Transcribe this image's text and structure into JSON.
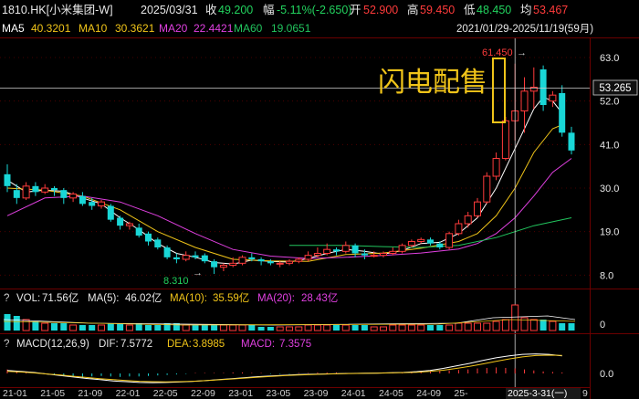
{
  "header": {
    "symbol": "1810.HK[小米集团-W]",
    "date": "2025/03/31",
    "close_label": "收",
    "close": "49.200",
    "change_label": "幅",
    "change": "-5.11%(-2.650)",
    "open_label": "开",
    "open": "52.900",
    "high_label": "高",
    "high": "59.450",
    "low_label": "低",
    "low": "48.450",
    "avg_label": "均",
    "avg": "53.467"
  },
  "ma_line": {
    "items": [
      {
        "label": "MA5",
        "value": "40.3201",
        "color": "#ffffff"
      },
      {
        "label": "MA10",
        "value": "30.3621",
        "color": "#f0c419"
      },
      {
        "label": "MA20",
        "value": "22.4421",
        "color": "#e040e0"
      },
      {
        "label": "MA60",
        "value": "19.0651",
        "color": "#22c55e"
      }
    ],
    "range": "2021/01/29-2025/11/19(59月)"
  },
  "annotation": {
    "text": "闪电配售",
    "color": "#f0c419"
  },
  "price_labels": {
    "high_mark": "61.450",
    "low_mark": "8.310",
    "current": "53.265"
  },
  "vol_line": {
    "q": "?",
    "vol_label": "VOL:",
    "vol": "71.56亿",
    "ma5_label": "MA(5):",
    "ma5": "46.02亿",
    "ma10_label": "MA(10):",
    "ma10": "35.59亿",
    "ma20_label": "MA(20):",
    "ma20": "28.43亿",
    "axis_zero": "0"
  },
  "macd_line": {
    "q": "?",
    "label": "MACD(12,26,9)",
    "dif_label": "DIF:",
    "dif": "7.5772",
    "dea_label": "DEA:",
    "dea": "3.8985",
    "macd_label": "MACD:",
    "macd": "7.3575",
    "axis_zero": "0.0"
  },
  "x_axis": {
    "ticks": [
      "21-01",
      "21-05",
      "21-09",
      "22-01",
      "22-05",
      "22-09",
      "23-01",
      "23-05",
      "23-09",
      "24-01",
      "24-05",
      "24-09",
      "25-"
    ],
    "current_label": "2025-3-31(一)",
    "last": "9"
  },
  "chart_data": {
    "type": "candlestick",
    "title": "",
    "y_ticks": [
      63.0,
      52.0,
      41.0,
      30.0,
      19.0,
      8.0
    ],
    "ylim": [
      6,
      66
    ],
    "up_color": "#ff3b3b",
    "down_color": "#19d6d6",
    "candles": [
      {
        "o": 33.5,
        "c": 30.5,
        "h": 36.0,
        "l": 29.0
      },
      {
        "o": 29.5,
        "c": 27.5,
        "h": 31.0,
        "l": 26.0
      },
      {
        "o": 27.5,
        "c": 30.5,
        "h": 31.5,
        "l": 27.0
      },
      {
        "o": 30.5,
        "c": 29.0,
        "h": 31.5,
        "l": 28.0
      },
      {
        "o": 29.0,
        "c": 30.0,
        "h": 31.0,
        "l": 28.5
      },
      {
        "o": 30.0,
        "c": 29.5,
        "h": 30.5,
        "l": 28.0
      },
      {
        "o": 29.5,
        "c": 27.5,
        "h": 30.0,
        "l": 26.0
      },
      {
        "o": 27.5,
        "c": 28.5,
        "h": 29.0,
        "l": 26.5
      },
      {
        "o": 28.0,
        "c": 26.0,
        "h": 29.0,
        "l": 25.5
      },
      {
        "o": 26.5,
        "c": 25.5,
        "h": 27.5,
        "l": 24.5
      },
      {
        "o": 25.5,
        "c": 26.5,
        "h": 27.0,
        "l": 24.8
      },
      {
        "o": 25.5,
        "c": 22.0,
        "h": 26.0,
        "l": 21.5
      },
      {
        "o": 22.5,
        "c": 20.5,
        "h": 23.0,
        "l": 19.5
      },
      {
        "o": 20.5,
        "c": 21.0,
        "h": 21.5,
        "l": 19.5
      },
      {
        "o": 20.0,
        "c": 18.0,
        "h": 21.0,
        "l": 17.5
      },
      {
        "o": 18.5,
        "c": 16.5,
        "h": 19.0,
        "l": 15.5
      },
      {
        "o": 17.0,
        "c": 15.0,
        "h": 17.5,
        "l": 14.5
      },
      {
        "o": 15.0,
        "c": 12.5,
        "h": 15.5,
        "l": 12.0
      },
      {
        "o": 12.5,
        "c": 12.0,
        "h": 13.5,
        "l": 11.0
      },
      {
        "o": 12.0,
        "c": 13.0,
        "h": 14.0,
        "l": 11.5
      },
      {
        "o": 13.0,
        "c": 12.5,
        "h": 14.0,
        "l": 12.0
      },
      {
        "o": 13.0,
        "c": 11.5,
        "h": 13.5,
        "l": 11.0
      },
      {
        "o": 11.5,
        "c": 10.0,
        "h": 12.0,
        "l": 8.3
      },
      {
        "o": 10.0,
        "c": 10.5,
        "h": 11.0,
        "l": 9.0
      },
      {
        "o": 10.5,
        "c": 11.0,
        "h": 12.5,
        "l": 10.0
      },
      {
        "o": 11.0,
        "c": 12.5,
        "h": 13.0,
        "l": 10.5
      },
      {
        "o": 12.5,
        "c": 12.0,
        "h": 13.5,
        "l": 11.5
      },
      {
        "o": 12.0,
        "c": 11.5,
        "h": 12.5,
        "l": 10.5
      },
      {
        "o": 11.5,
        "c": 11.0,
        "h": 12.0,
        "l": 10.5
      },
      {
        "o": 11.0,
        "c": 11.0,
        "h": 11.5,
        "l": 10.0
      },
      {
        "o": 11.0,
        "c": 11.5,
        "h": 12.0,
        "l": 10.5
      },
      {
        "o": 11.5,
        "c": 12.0,
        "h": 12.5,
        "l": 11.0
      },
      {
        "o": 12.0,
        "c": 13.0,
        "h": 14.0,
        "l": 11.5
      },
      {
        "o": 13.0,
        "c": 13.5,
        "h": 15.0,
        "l": 12.5
      },
      {
        "o": 13.5,
        "c": 14.5,
        "h": 16.0,
        "l": 13.0
      },
      {
        "o": 14.5,
        "c": 14.0,
        "h": 15.0,
        "l": 13.0
      },
      {
        "o": 14.0,
        "c": 15.5,
        "h": 16.5,
        "l": 13.5
      },
      {
        "o": 15.5,
        "c": 13.5,
        "h": 16.0,
        "l": 12.5
      },
      {
        "o": 13.5,
        "c": 13.0,
        "h": 14.5,
        "l": 12.0
      },
      {
        "o": 13.0,
        "c": 13.0,
        "h": 14.0,
        "l": 12.5
      },
      {
        "o": 13.0,
        "c": 13.5,
        "h": 14.0,
        "l": 12.5
      },
      {
        "o": 13.5,
        "c": 14.0,
        "h": 15.0,
        "l": 13.0
      },
      {
        "o": 14.0,
        "c": 15.5,
        "h": 16.0,
        "l": 13.5
      },
      {
        "o": 15.5,
        "c": 16.5,
        "h": 17.0,
        "l": 15.0
      },
      {
        "o": 16.5,
        "c": 17.0,
        "h": 17.5,
        "l": 16.0
      },
      {
        "o": 17.0,
        "c": 16.0,
        "h": 17.5,
        "l": 15.5
      },
      {
        "o": 16.0,
        "c": 15.0,
        "h": 16.5,
        "l": 14.5
      },
      {
        "o": 15.0,
        "c": 18.5,
        "h": 19.0,
        "l": 14.5
      },
      {
        "o": 18.5,
        "c": 21.0,
        "h": 22.0,
        "l": 18.0
      },
      {
        "o": 21.0,
        "c": 23.0,
        "h": 24.0,
        "l": 20.0
      },
      {
        "o": 23.0,
        "c": 26.5,
        "h": 27.5,
        "l": 22.5
      },
      {
        "o": 26.5,
        "c": 33.0,
        "h": 34.0,
        "l": 26.0
      },
      {
        "o": 33.0,
        "c": 37.5,
        "h": 39.0,
        "l": 32.0
      },
      {
        "o": 37.5,
        "c": 47.0,
        "h": 48.0,
        "l": 37.0
      },
      {
        "o": 47.0,
        "c": 49.5,
        "h": 61.45,
        "l": 42.0
      },
      {
        "o": 49.5,
        "c": 54.5,
        "h": 58.0,
        "l": 44.0
      },
      {
        "o": 54.5,
        "c": 55.5,
        "h": 60.5,
        "l": 50.0
      },
      {
        "o": 60.0,
        "c": 51.0,
        "h": 61.0,
        "l": 49.5
      },
      {
        "o": 52.0,
        "c": 53.5,
        "h": 54.5,
        "l": 50.5
      },
      {
        "o": 54.0,
        "c": 44.0,
        "h": 56.0,
        "l": 43.0
      },
      {
        "o": 44.0,
        "c": 39.5,
        "h": 45.5,
        "l": 38.5
      }
    ],
    "volumes": [
      9,
      8,
      6,
      5,
      4,
      4,
      4,
      3,
      3,
      3,
      3,
      4,
      4,
      3,
      4,
      3,
      3,
      4,
      4,
      3,
      3,
      3,
      3,
      3,
      3,
      3,
      3,
      2,
      2,
      2,
      2,
      2,
      3,
      3,
      3,
      3,
      3,
      3,
      3,
      2,
      2,
      3,
      3,
      3,
      3,
      3,
      3,
      3,
      4,
      4,
      4,
      4,
      5,
      6,
      14,
      7,
      6,
      6,
      5,
      4,
      4
    ],
    "ma_lines": [
      {
        "name": "MA5",
        "color": "#ffffff",
        "points": [
          [
            0,
            32
          ],
          [
            2,
            29
          ],
          [
            4,
            29.5
          ],
          [
            6,
            29.2
          ],
          [
            8,
            27.5
          ],
          [
            10,
            26
          ],
          [
            12,
            22.5
          ],
          [
            14,
            19.5
          ],
          [
            16,
            16
          ],
          [
            18,
            13.5
          ],
          [
            20,
            12.5
          ],
          [
            22,
            11.2
          ],
          [
            24,
            10.8
          ],
          [
            26,
            11.8
          ],
          [
            28,
            11.5
          ],
          [
            30,
            11.3
          ],
          [
            32,
            12.2
          ],
          [
            34,
            13.5
          ],
          [
            36,
            14.5
          ],
          [
            38,
            14.0
          ],
          [
            40,
            13.3
          ],
          [
            42,
            14.2
          ],
          [
            44,
            16.0
          ],
          [
            46,
            16.3
          ],
          [
            48,
            18.5
          ],
          [
            50,
            22.5
          ],
          [
            52,
            30
          ],
          [
            54,
            40
          ],
          [
            56,
            50
          ],
          [
            57,
            53
          ],
          [
            58,
            52
          ],
          [
            59,
            49
          ]
        ]
      },
      {
        "name": "MA10",
        "color": "#f0c419",
        "points": [
          [
            0,
            30
          ],
          [
            4,
            29.5
          ],
          [
            8,
            28
          ],
          [
            12,
            24.5
          ],
          [
            16,
            19
          ],
          [
            20,
            15
          ],
          [
            24,
            12
          ],
          [
            28,
            11.6
          ],
          [
            32,
            11.5
          ],
          [
            36,
            13.2
          ],
          [
            40,
            13.6
          ],
          [
            44,
            14.8
          ],
          [
            48,
            16.5
          ],
          [
            50,
            18.5
          ],
          [
            52,
            23
          ],
          [
            54,
            30
          ],
          [
            56,
            39
          ],
          [
            58,
            45
          ],
          [
            59,
            46
          ]
        ]
      },
      {
        "name": "MA20",
        "color": "#e040e0",
        "points": [
          [
            0,
            23
          ],
          [
            4,
            27.5
          ],
          [
            8,
            28
          ],
          [
            12,
            26.5
          ],
          [
            16,
            23
          ],
          [
            20,
            18.5
          ],
          [
            24,
            14.5
          ],
          [
            28,
            12.8
          ],
          [
            32,
            12.2
          ],
          [
            36,
            12.5
          ],
          [
            40,
            13.0
          ],
          [
            44,
            13.6
          ],
          [
            48,
            14.6
          ],
          [
            50,
            16
          ],
          [
            52,
            18.5
          ],
          [
            54,
            22.5
          ],
          [
            56,
            28
          ],
          [
            58,
            34
          ],
          [
            60,
            37.5
          ]
        ]
      },
      {
        "name": "MA60",
        "color": "#22c55e",
        "points": [
          [
            30,
            15.5
          ],
          [
            36,
            15.5
          ],
          [
            40,
            15.2
          ],
          [
            44,
            15.0
          ],
          [
            48,
            15.5
          ],
          [
            52,
            17.5
          ],
          [
            56,
            20.5
          ],
          [
            60,
            22.5
          ]
        ]
      }
    ],
    "macd": {
      "hist": [
        0.4,
        0.2,
        0.1,
        0.05,
        -0.05,
        -0.1,
        -0.2,
        -0.3,
        -0.35,
        -0.3,
        -0.25,
        -0.3,
        -0.35,
        -0.3,
        -0.3,
        -0.25,
        -0.2,
        -0.15,
        -0.1,
        -0.05,
        0.05,
        0.05,
        0.05,
        0.05,
        0.1,
        0.1,
        0.05,
        0.05,
        -0.05,
        -0.05,
        -0.05,
        0.05,
        0.05,
        0.1,
        0.1,
        0.1,
        0.05,
        0.05,
        0.05,
        0.05,
        0.1,
        0.1,
        0.1,
        0.15,
        0.2,
        0.2,
        0.25,
        0.3,
        0.35,
        0.4,
        0.5,
        0.55,
        0.6,
        0.55,
        0.5,
        0.4,
        0.3,
        0.2,
        0.15,
        0.1
      ],
      "dif": [
        0.3,
        0.2,
        0.1,
        -0.05,
        -0.2,
        -0.35,
        -0.5,
        -0.62,
        -0.75,
        -0.82,
        -0.9,
        -0.92,
        -0.9,
        -0.85,
        -0.8,
        -0.72,
        -0.62,
        -0.52,
        -0.42,
        -0.32,
        -0.25,
        -0.18,
        -0.12,
        -0.08,
        -0.05,
        -0.02,
        0,
        0.02,
        0.04,
        0.06,
        0.1,
        0.18,
        0.3,
        0.5,
        0.75,
        1.0,
        1.3,
        1.55,
        1.75,
        1.9,
        1.95,
        1.9,
        1.75
      ],
      "dea": [
        0.2,
        0.15,
        0.05,
        -0.05,
        -0.15,
        -0.28,
        -0.4,
        -0.52,
        -0.62,
        -0.7,
        -0.78,
        -0.82,
        -0.84,
        -0.82,
        -0.78,
        -0.72,
        -0.64,
        -0.55,
        -0.46,
        -0.37,
        -0.29,
        -0.22,
        -0.16,
        -0.11,
        -0.07,
        -0.04,
        -0.01,
        0.01,
        0.03,
        0.05,
        0.08,
        0.12,
        0.2,
        0.32,
        0.5,
        0.7,
        0.95,
        1.2,
        1.45,
        1.65,
        1.78,
        1.82,
        1.8
      ]
    }
  }
}
